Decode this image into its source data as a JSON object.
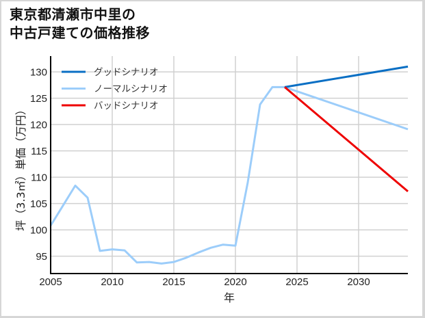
{
  "title": {
    "line1": "東京都清瀬市中里の",
    "line2": "中古戸建ての価格推移"
  },
  "colors": {
    "good": "#0a6fc4",
    "normal": "#9ccdfa",
    "bad": "#ee0000",
    "grid": "#d0d0d0",
    "axis": "#000000",
    "border": "#d6d6d6"
  },
  "chart_data": {
    "type": "line",
    "title": "東京都清瀬市中里の中古戸建ての価格推移",
    "xlabel": "年",
    "ylabel": "坪（3.3㎡）単価（万円）",
    "xlim": [
      2005,
      2034
    ],
    "ylim": [
      91.7,
      133
    ],
    "x_ticks": [
      2005,
      2010,
      2015,
      2020,
      2025,
      2030
    ],
    "y_ticks": [
      95,
      100,
      105,
      110,
      115,
      120,
      125,
      130
    ],
    "grid": true,
    "legend_position": "upper left",
    "legend": [
      "グッドシナリオ",
      "ノーマルシナリオ",
      "バッドシナリオ"
    ],
    "series": [
      {
        "name": "ノーマルシナリオ",
        "key": "normal",
        "x": [
          2005,
          2006,
          2007,
          2008,
          2009,
          2010,
          2011,
          2012,
          2013,
          2014,
          2015,
          2016,
          2017,
          2018,
          2019,
          2020,
          2021,
          2022,
          2023,
          2024,
          2034
        ],
        "values": [
          100.8,
          104.6,
          108.4,
          106.1,
          96.0,
          96.3,
          96.1,
          93.8,
          93.9,
          93.6,
          93.9,
          94.7,
          95.7,
          96.6,
          97.2,
          97.0,
          109.0,
          123.8,
          127.1,
          127.1,
          119.1
        ]
      },
      {
        "name": "グッドシナリオ",
        "key": "good",
        "x": [
          2024,
          2034
        ],
        "values": [
          127.1,
          131.0
        ]
      },
      {
        "name": "バッドシナリオ",
        "key": "bad",
        "x": [
          2024,
          2034
        ],
        "values": [
          127.1,
          107.3
        ]
      }
    ]
  }
}
